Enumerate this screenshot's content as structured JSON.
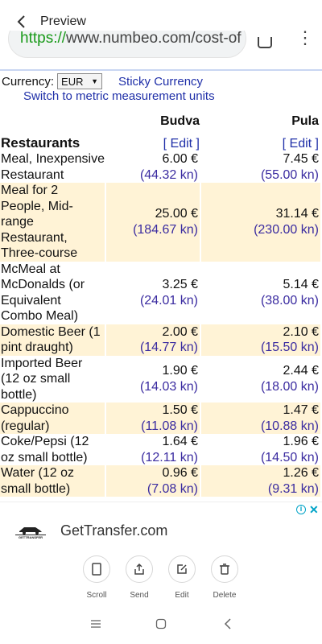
{
  "header": {
    "back_icon": "chevron-left-icon",
    "title": "Preview"
  },
  "urlbar": {
    "scheme": "https://",
    "rest": "www.numbeo.com/cost-of"
  },
  "currency": {
    "label": "Currency:",
    "selected": "EUR",
    "sticky_label": "Sticky Currency",
    "metric_link": "Switch to metric measurement units"
  },
  "table": {
    "columns": [
      "",
      "Budva",
      "Pula"
    ],
    "section": "Restaurants",
    "edit_label": "[ Edit ]",
    "rows": [
      {
        "item": [
          "Meal, Inexpensive",
          "Restaurant"
        ],
        "budva_eur": "6.00 €",
        "budva_kn": "(44.32 kn)",
        "pula_eur": "7.45 €",
        "pula_kn": "(55.00 kn)",
        "shaded": false
      },
      {
        "item": [
          "Meal for 2",
          "People, Mid-range",
          "Restaurant,",
          "Three-course"
        ],
        "budva_eur": "25.00 €",
        "budva_kn": "(184.67 kn)",
        "pula_eur": "31.14 €",
        "pula_kn": "(230.00 kn)",
        "shaded": true
      },
      {
        "item": [
          "McMeal at",
          "McDonalds (or",
          "Equivalent",
          "Combo Meal)"
        ],
        "budva_eur": "3.25 €",
        "budva_kn": "(24.01 kn)",
        "pula_eur": "5.14 €",
        "pula_kn": "(38.00 kn)",
        "shaded": false
      },
      {
        "item": [
          "Domestic Beer (1",
          "pint draught)"
        ],
        "budva_eur": "2.00 €",
        "budva_kn": "(14.77 kn)",
        "pula_eur": "2.10 €",
        "pula_kn": "(15.50 kn)",
        "shaded": true
      },
      {
        "item": [
          "Imported Beer",
          "(12 oz small",
          "bottle)"
        ],
        "budva_eur": "1.90 €",
        "budva_kn": "(14.03 kn)",
        "pula_eur": "2.44 €",
        "pula_kn": "(18.00 kn)",
        "shaded": false
      },
      {
        "item": [
          "Cappuccino",
          "(regular)"
        ],
        "budva_eur": "1.50 €",
        "budva_kn": "(11.08 kn)",
        "pula_eur": "1.47 €",
        "pula_kn": "(10.88 kn)",
        "shaded": true
      },
      {
        "item": [
          "Coke/Pepsi (12",
          "oz small bottle)"
        ],
        "budva_eur": "1.64 €",
        "budva_kn": "(12.11 kn)",
        "pula_eur": "1.96 €",
        "pula_kn": "(14.50 kn)",
        "shaded": false
      },
      {
        "item": [
          "Water (12 oz",
          "small bottle)"
        ],
        "budva_eur": "0.96 €",
        "budva_kn": "(7.08 kn)",
        "pula_eur": "1.26 €",
        "pula_kn": "(9.31 kn)",
        "shaded": true
      }
    ]
  },
  "ad": {
    "text": "GetTransfer.com",
    "logo_text": "GETTRANSFER",
    "info_icon": "info-icon",
    "close_icon": "close-icon"
  },
  "actions": [
    {
      "label": "Scroll",
      "icon": "scroll-capture-icon"
    },
    {
      "label": "Send",
      "icon": "share-icon"
    },
    {
      "label": "Edit",
      "icon": "edit-icon"
    },
    {
      "label": "Delete",
      "icon": "trash-icon"
    }
  ],
  "system_nav": [
    "recents-icon",
    "home-icon",
    "back-icon"
  ],
  "colors": {
    "shade": "#fff3d6",
    "link": "#1f2fa8",
    "kn": "#3a2ba0"
  }
}
